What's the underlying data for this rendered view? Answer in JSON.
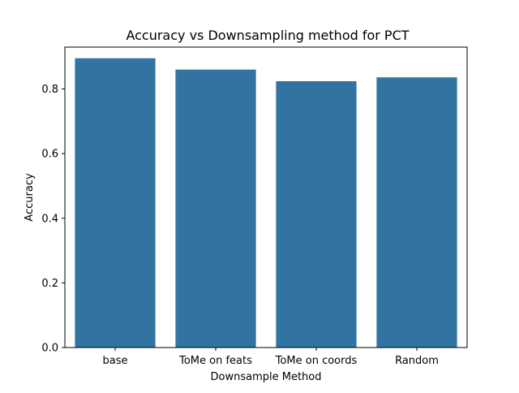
{
  "chart_data": {
    "type": "bar",
    "title": "Accuracy vs Downsampling method for PCT",
    "xlabel": "Downsample Method",
    "ylabel": "Accuracy",
    "categories": [
      "base",
      "ToMe on feats",
      "ToMe on coords",
      "Random"
    ],
    "values": [
      0.895,
      0.86,
      0.824,
      0.836
    ],
    "ylim": [
      0,
      0.9295
    ],
    "yticks": [
      0.0,
      0.2,
      0.4,
      0.6,
      0.8
    ],
    "ytick_labels": [
      "0.0",
      "0.2",
      "0.4",
      "0.6",
      "0.8"
    ],
    "bar_color": "#3274a1",
    "grid": false,
    "legend": "none"
  }
}
